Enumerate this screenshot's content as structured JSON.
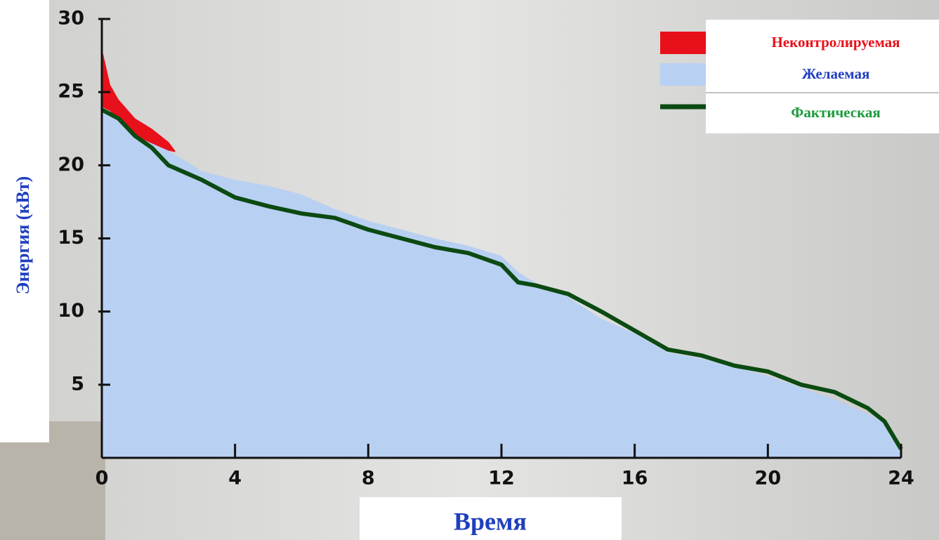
{
  "chart_data": {
    "type": "area",
    "x_label": "Время",
    "y_label": "Энергия (кВт)",
    "xlim": [
      0,
      24
    ],
    "xticks": [
      0,
      4,
      8,
      12,
      16,
      20,
      24
    ],
    "ylim": [
      0,
      30
    ],
    "yticks": [
      5,
      10,
      15,
      20,
      25,
      30
    ],
    "grid": false,
    "legend": "top-right",
    "series": [
      {
        "name": "Неконтролируемая",
        "color": "#e8101a",
        "kind": "band",
        "x": [
          0,
          0.25,
          0.5,
          1,
          1.5,
          2,
          2.2
        ],
        "values": [
          28,
          25.5,
          24.5,
          23.2,
          22.5,
          21.6,
          21
        ],
        "low": [
          24,
          23.7,
          23.2,
          22,
          21.5,
          21,
          20.9
        ]
      },
      {
        "name": "Желаемая",
        "color": "#b8d0f2",
        "kind": "area",
        "x": [
          0,
          0.5,
          1,
          2,
          3,
          4,
          5,
          6,
          7,
          8,
          9,
          10,
          11,
          12,
          12.5,
          13,
          14,
          15,
          16,
          17,
          18,
          19,
          20,
          21,
          22,
          23,
          23.5,
          24
        ],
        "values": [
          24,
          23.4,
          22.5,
          21,
          19.6,
          19,
          18.6,
          18,
          17,
          16.2,
          15.6,
          15,
          14.5,
          13.8,
          12.7,
          12,
          11,
          9.5,
          8.5,
          7.2,
          6.8,
          6.2,
          5.6,
          4.8,
          4,
          3,
          2.4,
          0.5
        ]
      },
      {
        "name": "Фактическая",
        "color": "#0b4a12",
        "kind": "line",
        "x": [
          0,
          0.5,
          1,
          1.5,
          2,
          3,
          4,
          5,
          6,
          7,
          8,
          9,
          10,
          11,
          12,
          12.5,
          13,
          14,
          15,
          16,
          17,
          18,
          19,
          20,
          21,
          22,
          23,
          23.5,
          24
        ],
        "values": [
          23.8,
          23.2,
          22,
          21.2,
          20,
          19,
          17.8,
          17.2,
          16.7,
          16.4,
          15.6,
          15,
          14.4,
          14,
          13.2,
          12,
          11.8,
          11.2,
          10,
          8.7,
          7.4,
          7,
          6.3,
          5.9,
          5,
          4.5,
          3.4,
          2.5,
          0.6
        ]
      }
    ]
  }
}
